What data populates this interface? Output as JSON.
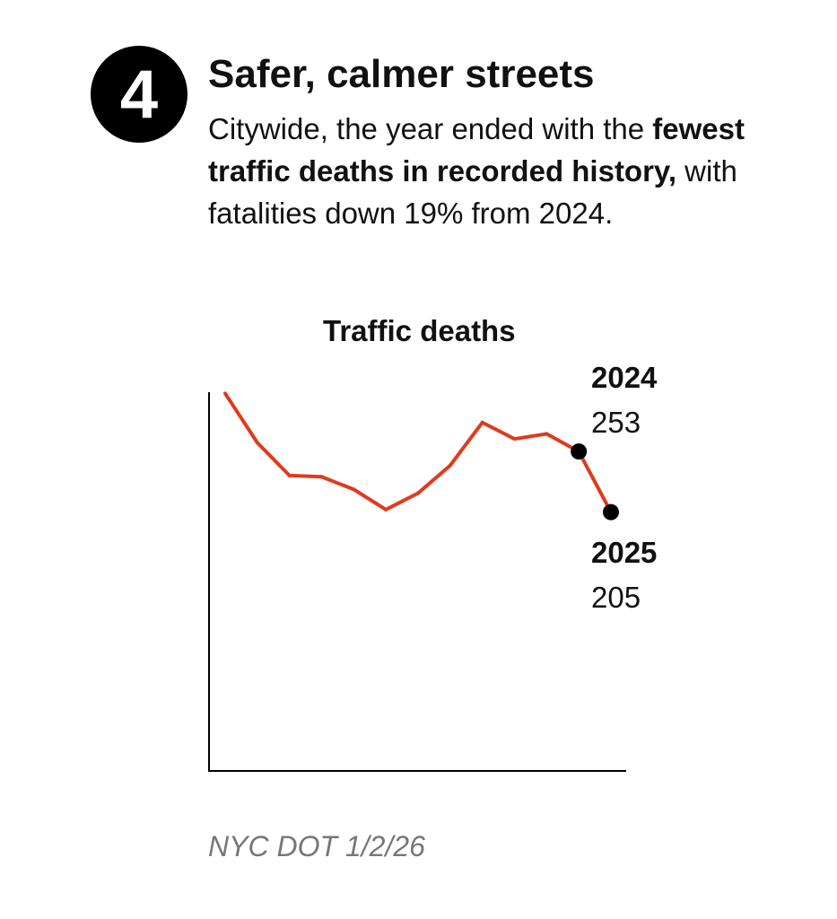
{
  "header": {
    "number": "4",
    "title": "Safer, calmer streets",
    "desc_pre": "Citywide, the year ended with the ",
    "desc_bold": "fewest traffic deaths in recorded history,",
    "desc_post": " with fatalities down 19% from 2024."
  },
  "source": "NYC DOT 1/2/26",
  "colors": {
    "line": "#e03a1e",
    "axis": "#000000",
    "marker": "#000000"
  },
  "chart_data": {
    "type": "line",
    "title": "Traffic deaths",
    "xlabel": "",
    "ylabel": "",
    "ylim": [
      0,
      300
    ],
    "grid": false,
    "values": [
      299,
      260,
      234,
      233,
      223,
      207,
      220,
      242,
      276,
      263,
      267,
      253,
      205
    ],
    "annotations": [
      {
        "label": "2024",
        "value": "253",
        "index": 11
      },
      {
        "label": "2025",
        "value": "205",
        "index": 12
      }
    ]
  }
}
